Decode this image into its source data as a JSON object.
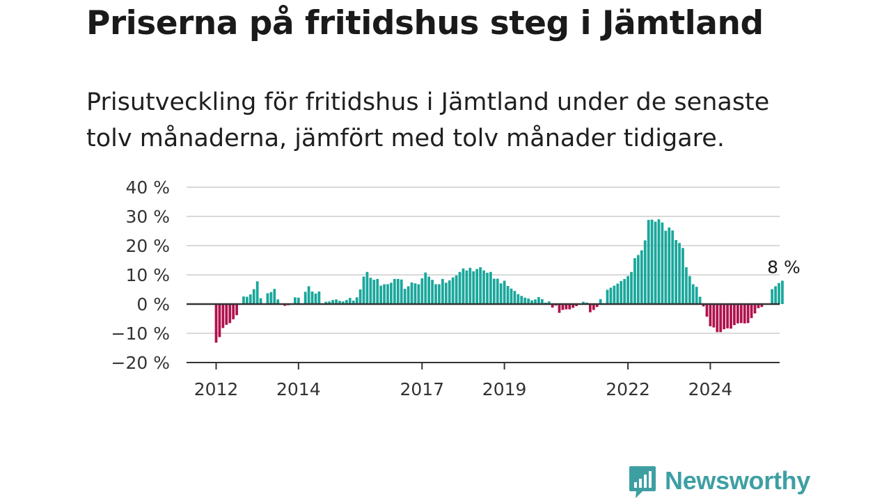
{
  "header": {
    "title": "Priserna på fritidshus steg i Jämtland",
    "subtitle": "Prisutveckling för fritidshus i Jämtland under de senaste tolv månaderna, jämfört med tolv månader tidigare."
  },
  "brand": {
    "name": "Newsworthy",
    "color": "#3e9fa3",
    "icon": "newsworthy-logo-icon"
  },
  "colors": {
    "positive": "#1aa79b",
    "negative": "#b0124d",
    "grid": "#d9d9d9",
    "baseline": "#333333"
  },
  "chart_data": {
    "type": "bar",
    "title": "Priserna på fritidshus steg i Jämtland",
    "xlabel": "",
    "ylabel": "",
    "ylim": [
      -20,
      40
    ],
    "yticks": [
      40,
      30,
      20,
      10,
      0,
      -10,
      -20
    ],
    "ytick_labels": [
      "40 %",
      "30 %",
      "20 %",
      "10 %",
      "0 %",
      "−10 %",
      "−20 %"
    ],
    "xticks": [
      2012,
      2014,
      2017,
      2019,
      2022,
      2024
    ],
    "xtick_labels": [
      "2012",
      "2014",
      "2017",
      "2019",
      "2022",
      "2024"
    ],
    "grid": true,
    "end_label": "8 %",
    "series": [
      {
        "start": "2012-01",
        "frequency": "monthly",
        "values": [
          -13.2,
          -11.3,
          -8.2,
          -7.1,
          -6.5,
          -5.2,
          -3.8,
          0,
          2.6,
          2.5,
          3.3,
          5.1,
          7.8,
          2.0,
          0,
          3.7,
          4.1,
          5.2,
          1.6,
          0,
          -0.6,
          -0.4,
          0,
          2.3,
          2.2,
          0,
          4.2,
          6.1,
          4.3,
          3.6,
          4.3,
          0,
          0.8,
          0.9,
          1.4,
          1.6,
          1.1,
          0.9,
          1.4,
          2.1,
          1.2,
          2.3,
          5.0,
          9.4,
          11.0,
          9.0,
          8.3,
          8.6,
          6.3,
          6.8,
          6.8,
          7.3,
          8.6,
          8.6,
          8.4,
          5.2,
          6.1,
          7.4,
          7.1,
          6.8,
          8.8,
          10.8,
          9.4,
          8.3,
          6.8,
          6.8,
          8.6,
          7.3,
          8.1,
          9.1,
          9.8,
          11.0,
          12.2,
          11.5,
          12.4,
          11.2,
          12.0,
          12.6,
          11.5,
          10.7,
          11.0,
          8.7,
          8.7,
          7.1,
          8.0,
          6.2,
          5.3,
          4.5,
          3.4,
          2.8,
          2.2,
          1.9,
          1.3,
          1.6,
          2.4,
          1.7,
          0.5,
          0.9,
          -1.2,
          -0.5,
          -3.0,
          -2.0,
          -1.8,
          -1.8,
          -1.3,
          -0.7,
          0,
          0.8,
          0.5,
          -2.8,
          -2.0,
          -1.0,
          1.7,
          0.3,
          4.9,
          5.6,
          6.3,
          7.0,
          7.9,
          8.6,
          9.6,
          11.0,
          15.7,
          16.8,
          18.4,
          21.8,
          28.8,
          28.9,
          28.2,
          29.0,
          27.9,
          25.1,
          26.2,
          25.2,
          21.9,
          20.9,
          19.2,
          12.6,
          9.6,
          6.8,
          5.9,
          2.5,
          -0.8,
          -4.3,
          -7.6,
          -8.0,
          -9.6,
          -9.6,
          -8.6,
          -8.3,
          -8.4,
          -7.2,
          -6.6,
          -6.5,
          -6.6,
          -6.5,
          -4.8,
          -3.2,
          -1.4,
          -1.0,
          0,
          0,
          5.1,
          6.1,
          7.2,
          8.0
        ]
      }
    ]
  }
}
